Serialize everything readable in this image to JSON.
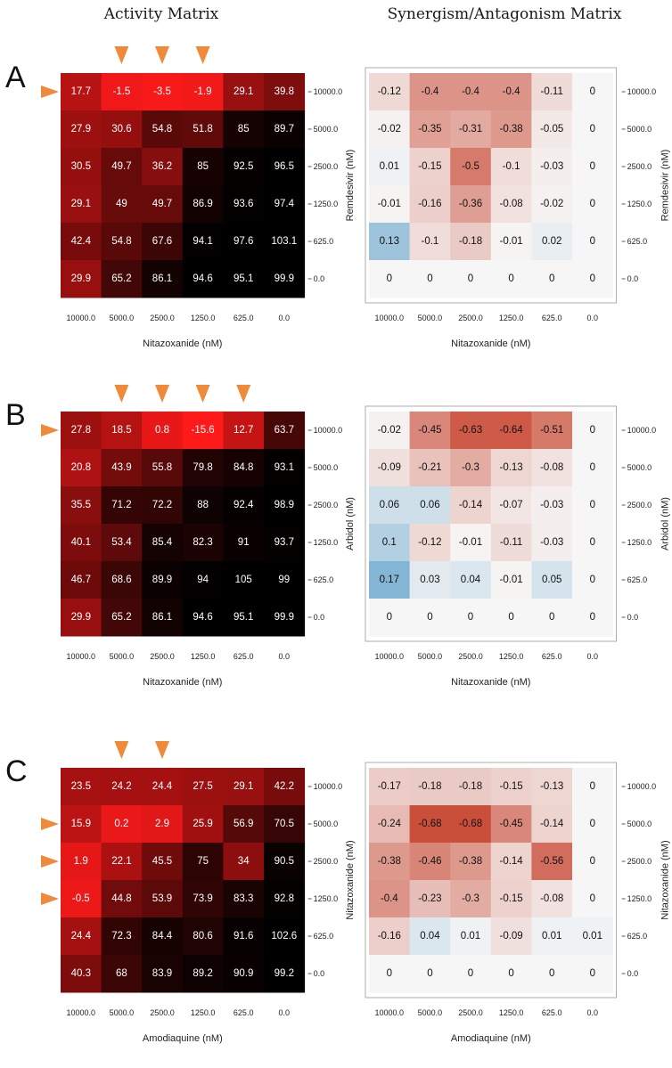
{
  "headers": {
    "activity": "Activity Matrix",
    "synergy": "Synergism/Antagonism Matrix"
  },
  "chart_data": [
    {
      "panel": "A",
      "type": "heatmap",
      "kind": "activity",
      "title": "Activity Matrix",
      "xlabel": "Nitazoxanide (nM)",
      "ylabel": "",
      "x_ticks": [
        "10000.0",
        "5000.0",
        "2500.0",
        "1250.0",
        "625.0",
        "0.0"
      ],
      "y_ticks": [
        "10000.0",
        "5000.0",
        "2500.0",
        "1250.0",
        "625.0",
        "0.0"
      ],
      "values": [
        [
          17.7,
          -1.5,
          -3.5,
          -1.9,
          29.1,
          39.8
        ],
        [
          27.9,
          30.6,
          54.8,
          51.8,
          85,
          89.7
        ],
        [
          30.5,
          49.7,
          36.2,
          85,
          92.5,
          96.5
        ],
        [
          29.1,
          49,
          49.7,
          86.9,
          93.6,
          97.4
        ],
        [
          42.4,
          54.8,
          67.6,
          94.1,
          97.6,
          103.1
        ],
        [
          29.9,
          65.2,
          86.1,
          94.6,
          95.1,
          99.9
        ]
      ],
      "labels": [
        [
          "17.7",
          "-1.5",
          "-3.5",
          "-1.9",
          "29.1",
          "39.8"
        ],
        [
          "27.9",
          "30.6",
          "54.8",
          "51.8",
          "85",
          "89.7"
        ],
        [
          "30.5",
          "49.7",
          "36.2",
          "85",
          "92.5",
          "96.5"
        ],
        [
          "29.1",
          "49",
          "49.7",
          "86.9",
          "93.6",
          "97.4"
        ],
        [
          "42.4",
          "54.8",
          "67.6",
          "94.1",
          "97.6",
          "103.1"
        ],
        [
          "29.9",
          "65.2",
          "86.1",
          "94.6",
          "95.1",
          "99.9"
        ]
      ],
      "arrows_top_columns": [
        1,
        2,
        3
      ],
      "arrows_left_rows": [
        0
      ]
    },
    {
      "panel": "A",
      "type": "heatmap",
      "kind": "synergy",
      "title": "Synergism/Antagonism Matrix",
      "xlabel": "Nitazoxanide (nM)",
      "ylabel": "Remdesivir (nM)",
      "x_ticks": [
        "10000.0",
        "5000.0",
        "2500.0",
        "1250.0",
        "625.0",
        "0.0"
      ],
      "y_ticks": [
        "10000.0",
        "5000.0",
        "2500.0",
        "1250.0",
        "625.0",
        "0.0"
      ],
      "values": [
        [
          -0.12,
          -0.4,
          -0.4,
          -0.4,
          -0.11,
          0
        ],
        [
          -0.02,
          -0.35,
          -0.31,
          -0.38,
          -0.05,
          0
        ],
        [
          0.01,
          -0.15,
          -0.5,
          -0.1,
          -0.03,
          0
        ],
        [
          -0.01,
          -0.16,
          -0.36,
          -0.08,
          -0.02,
          0
        ],
        [
          0.13,
          -0.1,
          -0.18,
          -0.01,
          0.02,
          0
        ],
        [
          0,
          0,
          0,
          0,
          0,
          0
        ]
      ],
      "labels": [
        [
          "-0.12",
          "-0.4",
          "-0.4",
          "-0.4",
          "-0.11",
          "0"
        ],
        [
          "-0.02",
          "-0.35",
          "-0.31",
          "-0.38",
          "-0.05",
          "0"
        ],
        [
          "0.01",
          "-0.15",
          "-0.5",
          "-0.1",
          "-0.03",
          "0"
        ],
        [
          "-0.01",
          "-0.16",
          "-0.36",
          "-0.08",
          "-0.02",
          "0"
        ],
        [
          "0.13",
          "-0.1",
          "-0.18",
          "-0.01",
          "0.02",
          "0"
        ],
        [
          "0",
          "0",
          "0",
          "0",
          "0",
          "0"
        ]
      ]
    },
    {
      "panel": "B",
      "type": "heatmap",
      "kind": "activity",
      "title": "Activity Matrix",
      "xlabel": "Nitazoxanide (nM)",
      "ylabel": "",
      "x_ticks": [
        "10000.0",
        "5000.0",
        "2500.0",
        "1250.0",
        "625.0",
        "0.0"
      ],
      "y_ticks": [
        "10000.0",
        "5000.0",
        "2500.0",
        "1250.0",
        "625.0",
        "0.0"
      ],
      "values": [
        [
          27.8,
          18.5,
          0.8,
          -15.6,
          12.7,
          63.7
        ],
        [
          20.8,
          43.9,
          55.8,
          79.8,
          84.8,
          93.1
        ],
        [
          35.5,
          71.2,
          72.2,
          88,
          92.4,
          98.9
        ],
        [
          40.1,
          53.4,
          85.4,
          82.3,
          91,
          93.7
        ],
        [
          46.7,
          68.6,
          89.9,
          94,
          105,
          99
        ],
        [
          29.9,
          65.2,
          86.1,
          94.6,
          95.1,
          99.9
        ]
      ],
      "labels": [
        [
          "27.8",
          "18.5",
          "0.8",
          "-15.6",
          "12.7",
          "63.7"
        ],
        [
          "20.8",
          "43.9",
          "55.8",
          "79.8",
          "84.8",
          "93.1"
        ],
        [
          "35.5",
          "71.2",
          "72.2",
          "88",
          "92.4",
          "98.9"
        ],
        [
          "40.1",
          "53.4",
          "85.4",
          "82.3",
          "91",
          "93.7"
        ],
        [
          "46.7",
          "68.6",
          "89.9",
          "94",
          "105",
          "99"
        ],
        [
          "29.9",
          "65.2",
          "86.1",
          "94.6",
          "95.1",
          "99.9"
        ]
      ],
      "arrows_top_columns": [
        1,
        2,
        3,
        4
      ],
      "arrows_left_rows": [
        0
      ]
    },
    {
      "panel": "B",
      "type": "heatmap",
      "kind": "synergy",
      "title": "Synergism/Antagonism Matrix",
      "xlabel": "Nitazoxanide (nM)",
      "ylabel": "Arbidol (nM)",
      "x_ticks": [
        "10000.0",
        "5000.0",
        "2500.0",
        "1250.0",
        "625.0",
        "0.0"
      ],
      "y_ticks": [
        "10000.0",
        "5000.0",
        "2500.0",
        "1250.0",
        "625.0",
        "0.0"
      ],
      "values": [
        [
          -0.02,
          -0.45,
          -0.63,
          -0.64,
          -0.51,
          0
        ],
        [
          -0.09,
          -0.21,
          -0.3,
          -0.13,
          -0.08,
          0
        ],
        [
          0.06,
          0.06,
          -0.14,
          -0.07,
          -0.03,
          0
        ],
        [
          0.1,
          -0.12,
          -0.01,
          -0.11,
          -0.03,
          0
        ],
        [
          0.17,
          0.03,
          0.04,
          -0.01,
          0.05,
          0
        ],
        [
          0,
          0,
          0,
          0,
          0,
          0
        ]
      ],
      "labels": [
        [
          "-0.02",
          "-0.45",
          "-0.63",
          "-0.64",
          "-0.51",
          "0"
        ],
        [
          "-0.09",
          "-0.21",
          "-0.3",
          "-0.13",
          "-0.08",
          "0"
        ],
        [
          "0.06",
          "0.06",
          "-0.14",
          "-0.07",
          "-0.03",
          "0"
        ],
        [
          "0.1",
          "-0.12",
          "-0.01",
          "-0.11",
          "-0.03",
          "0"
        ],
        [
          "0.17",
          "0.03",
          "0.04",
          "-0.01",
          "0.05",
          "0"
        ],
        [
          "0",
          "0",
          "0",
          "0",
          "0",
          "0"
        ]
      ]
    },
    {
      "panel": "C",
      "type": "heatmap",
      "kind": "activity",
      "title": "Activity Matrix",
      "xlabel": "Amodiaquine (nM)",
      "ylabel": "",
      "x_ticks": [
        "10000.0",
        "5000.0",
        "2500.0",
        "1250.0",
        "625.0",
        "0.0"
      ],
      "y_ticks": [
        "10000.0",
        "5000.0",
        "2500.0",
        "1250.0",
        "625.0",
        "0.0"
      ],
      "values": [
        [
          23.5,
          24.2,
          24.4,
          27.5,
          29.1,
          42.2
        ],
        [
          15.9,
          0.2,
          2.9,
          25.9,
          56.9,
          70.5
        ],
        [
          1.9,
          22.1,
          45.5,
          75,
          34,
          90.5
        ],
        [
          -0.5,
          44.8,
          53.9,
          73.9,
          83.3,
          92.8
        ],
        [
          24.4,
          72.3,
          84.4,
          80.6,
          91.6,
          102.6
        ],
        [
          40.3,
          68,
          83.9,
          89.2,
          90.9,
          99.2
        ]
      ],
      "labels": [
        [
          "23.5",
          "24.2",
          "24.4",
          "27.5",
          "29.1",
          "42.2"
        ],
        [
          "15.9",
          "0.2",
          "2.9",
          "25.9",
          "56.9",
          "70.5"
        ],
        [
          "1.9",
          "22.1",
          "45.5",
          "75",
          "34",
          "90.5"
        ],
        [
          "-0.5",
          "44.8",
          "53.9",
          "73.9",
          "83.3",
          "92.8"
        ],
        [
          "24.4",
          "72.3",
          "84.4",
          "80.6",
          "91.6",
          "102.6"
        ],
        [
          "40.3",
          "68",
          "83.9",
          "89.2",
          "90.9",
          "99.2"
        ]
      ],
      "arrows_top_columns": [
        1,
        2
      ],
      "arrows_left_rows": [
        1,
        2,
        3
      ]
    },
    {
      "panel": "C",
      "type": "heatmap",
      "kind": "synergy",
      "title": "Synergism/Antagonism Matrix",
      "xlabel": "Amodiaquine (nM)",
      "ylabel": "Nitazoxanide (nM)",
      "x_ticks": [
        "10000.0",
        "5000.0",
        "2500.0",
        "1250.0",
        "625.0",
        "0.0"
      ],
      "y_ticks": [
        "10000.0",
        "5000.0",
        "2500.0",
        "1250.0",
        "625.0",
        "0.0"
      ],
      "values": [
        [
          -0.17,
          -0.18,
          -0.18,
          -0.15,
          -0.13,
          0
        ],
        [
          -0.24,
          -0.68,
          -0.68,
          -0.45,
          -0.14,
          0
        ],
        [
          -0.38,
          -0.46,
          -0.38,
          -0.14,
          -0.56,
          0
        ],
        [
          -0.4,
          -0.23,
          -0.3,
          -0.15,
          -0.08,
          0
        ],
        [
          -0.16,
          0.04,
          0.01,
          -0.09,
          0.01,
          0.01
        ],
        [
          0,
          0,
          0,
          0,
          0,
          0
        ]
      ],
      "labels": [
        [
          "-0.17",
          "-0.18",
          "-0.18",
          "-0.15",
          "-0.13",
          "0"
        ],
        [
          "-0.24",
          "-0.68",
          "-0.68",
          "-0.45",
          "-0.14",
          "0"
        ],
        [
          "-0.38",
          "-0.46",
          "-0.38",
          "-0.14",
          "-0.56",
          "0"
        ],
        [
          "-0.4",
          "-0.23",
          "-0.3",
          "-0.15",
          "-0.08",
          "0"
        ],
        [
          "-0.16",
          "0.04",
          "0.01",
          "-0.09",
          "0.01",
          "0.01"
        ],
        [
          "0",
          "0",
          "0",
          "0",
          "0",
          "0"
        ]
      ]
    }
  ],
  "colors": {
    "arrow": "#EE8A3A",
    "activity_low": "#FF1A1A",
    "activity_high": "#000000",
    "syn_neg": "#C94A35",
    "syn_pos": "#6FA9CF",
    "syn_zero": "#F6F6F6"
  }
}
